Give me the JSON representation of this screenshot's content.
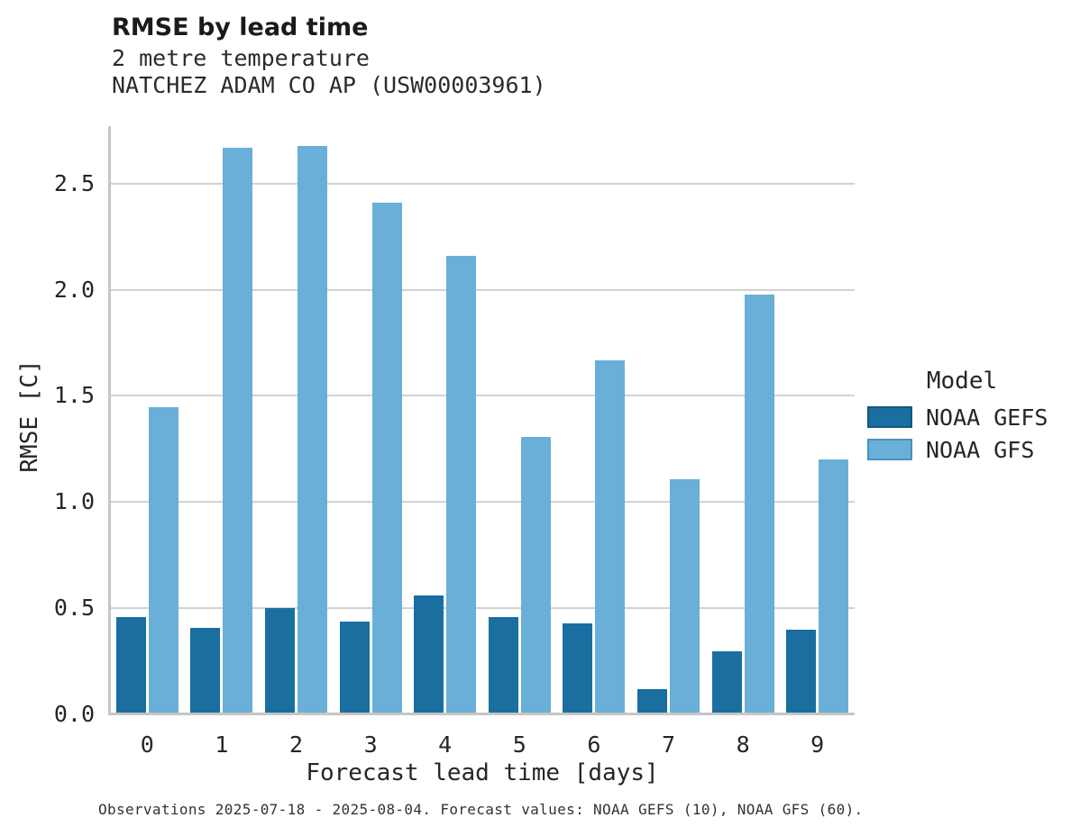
{
  "header": {
    "title": "RMSE by lead time",
    "subtitle1": "2 metre temperature",
    "subtitle2": "NATCHEZ ADAM CO AP (USW00003961)"
  },
  "caption": "Observations 2025-07-18 - 2025-08-04. Forecast values: NOAA GEFS (10), NOAA GFS (60).",
  "legend": {
    "title": "Model",
    "entries": [
      {
        "label": "NOAA GEFS",
        "color": "#1a6ea0",
        "border": "#13577f"
      },
      {
        "label": "NOAA GFS",
        "color": "#69afd7",
        "border": "#4b90bd"
      }
    ]
  },
  "colors": {
    "grid": "#d2d2d2",
    "spine": "#c6c6c6",
    "text": "#262626"
  },
  "chart_data": {
    "type": "bar",
    "title": "RMSE by lead time",
    "subtitle": "2 metre temperature — NATCHEZ ADAM CO AP (USW00003961)",
    "categories": [
      "0",
      "1",
      "2",
      "3",
      "4",
      "5",
      "6",
      "7",
      "8",
      "9"
    ],
    "series": [
      {
        "name": "NOAA GEFS",
        "color": "#1a6ea0",
        "values": [
          0.45,
          0.4,
          0.49,
          0.43,
          0.55,
          0.45,
          0.42,
          0.11,
          0.29,
          0.39
        ]
      },
      {
        "name": "NOAA GFS",
        "color": "#69afd7",
        "values": [
          1.44,
          2.66,
          2.67,
          2.4,
          2.15,
          1.3,
          1.66,
          1.1,
          1.97,
          1.19
        ]
      }
    ],
    "xlabel": "Forecast lead time [days]",
    "ylabel": "RMSE [C]",
    "ylim": [
      0,
      2.77
    ],
    "yticks": [
      0.0,
      0.5,
      1.0,
      1.5,
      2.0,
      2.5
    ],
    "ytick_labels": [
      "0.0",
      "0.5",
      "1.0",
      "1.5",
      "2.0",
      "2.5"
    ],
    "grid": true,
    "legend_position": "right"
  }
}
